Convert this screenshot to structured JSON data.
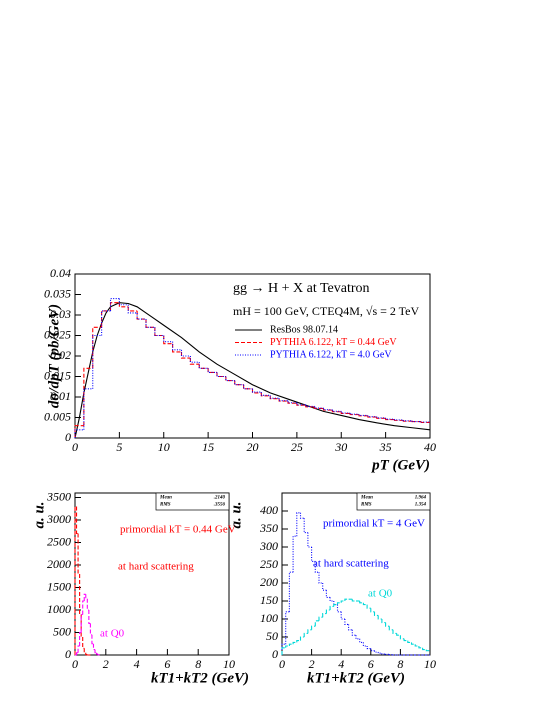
{
  "chart_data": [
    {
      "type": "line",
      "title": "gg → H + X at Tevatron",
      "subtitle": "mH = 100 GeV, CTEQ4M, √s = 2 TeV",
      "x_label": "pT (GeV)",
      "y_label": "dσ/dpT (pb/GeV)",
      "xlim": [
        0,
        40
      ],
      "xticks": [
        0,
        5,
        10,
        15,
        20,
        25,
        30,
        35,
        40
      ],
      "ylim": [
        0,
        0.04
      ],
      "yticks": [
        0,
        0.005,
        0.01,
        0.015,
        0.02,
        0.025,
        0.03,
        0.035,
        0.04
      ],
      "legend": "upper right",
      "series": [
        {
          "name": "ResBos 98.07.14",
          "color": "#000000",
          "dash": "solid",
          "x": [
            0,
            0.5,
            1,
            1.5,
            2,
            2.5,
            3,
            3.5,
            4,
            5,
            6,
            7,
            8,
            9,
            10,
            12,
            14,
            16,
            18,
            20,
            22,
            24,
            26,
            28,
            30,
            32,
            34,
            36,
            38,
            40
          ],
          "values": [
            0,
            0.005,
            0.011,
            0.016,
            0.021,
            0.025,
            0.028,
            0.0305,
            0.032,
            0.033,
            0.0328,
            0.032,
            0.0305,
            0.029,
            0.0275,
            0.0245,
            0.021,
            0.018,
            0.0155,
            0.013,
            0.011,
            0.0095,
            0.008,
            0.0065,
            0.0055,
            0.0045,
            0.0037,
            0.003,
            0.0025,
            0.002
          ]
        },
        {
          "name": "PYTHIA 6.122, kT = 0.44 GeV",
          "color": "#ff0000",
          "dash": "dashed",
          "bins": [
            0,
            1,
            2,
            3,
            4,
            5,
            6,
            7,
            8,
            9,
            10,
            11,
            12,
            13,
            14,
            15,
            16,
            17,
            18,
            19,
            20,
            21,
            22,
            23,
            24,
            25,
            26,
            27,
            28,
            29,
            30,
            31,
            32,
            33,
            34,
            35,
            36,
            37,
            38,
            39,
            40
          ],
          "values": [
            0.003,
            0.017,
            0.027,
            0.031,
            0.033,
            0.032,
            0.031,
            0.029,
            0.027,
            0.025,
            0.023,
            0.021,
            0.0195,
            0.018,
            0.017,
            0.016,
            0.015,
            0.014,
            0.013,
            0.012,
            0.011,
            0.0103,
            0.0096,
            0.009,
            0.0085,
            0.008,
            0.0076,
            0.0072,
            0.0068,
            0.0064,
            0.006,
            0.0057,
            0.0054,
            0.0051,
            0.0048,
            0.0045,
            0.0043,
            0.0041,
            0.004,
            0.0038
          ]
        },
        {
          "name": "PYTHIA 6.122, kT = 4.0 GeV",
          "color": "#0000ff",
          "dash": "dotted",
          "bins": [
            0,
            1,
            2,
            3,
            4,
            5,
            6,
            7,
            8,
            9,
            10,
            11,
            12,
            13,
            14,
            15,
            16,
            17,
            18,
            19,
            20,
            21,
            22,
            23,
            24,
            25,
            26,
            27,
            28,
            29,
            30,
            31,
            32,
            33,
            34,
            35,
            36,
            37,
            38,
            39,
            40
          ],
          "values": [
            0.002,
            0.012,
            0.025,
            0.031,
            0.034,
            0.0325,
            0.0305,
            0.029,
            0.027,
            0.025,
            0.0235,
            0.0215,
            0.02,
            0.0185,
            0.017,
            0.016,
            0.015,
            0.014,
            0.013,
            0.012,
            0.0112,
            0.0104,
            0.0097,
            0.0091,
            0.0086,
            0.0081,
            0.0077,
            0.0073,
            0.0069,
            0.0065,
            0.0061,
            0.0058,
            0.0055,
            0.0052,
            0.0049,
            0.0046,
            0.0044,
            0.0042,
            0.004,
            0.0039
          ]
        }
      ]
    },
    {
      "type": "histogram",
      "x_label": "kT1+kT2 (GeV)",
      "y_label": "a. u.",
      "xlim": [
        0,
        10
      ],
      "xticks": [
        0,
        2,
        4,
        6,
        8,
        10
      ],
      "ylim": [
        0,
        3600
      ],
      "yticks": [
        0,
        500,
        1000,
        1500,
        2000,
        2500,
        3000,
        3500
      ],
      "stats": [
        [
          "Mean",
          ".2140"
        ],
        [
          "RMS",
          ".3556"
        ]
      ],
      "annotations": [
        {
          "text": "primordial kT = 0.44 GeV",
          "color": "#ff0000"
        },
        {
          "text": "at hard scattering",
          "color": "#ff0000"
        },
        {
          "text": "at Q0",
          "color": "#ff00ff"
        }
      ],
      "series": [
        {
          "color": "#ff0000",
          "dash": "dashed",
          "bins": [
            0,
            0.1,
            0.2,
            0.3,
            0.4,
            0.5,
            0.6,
            0.7,
            0.8,
            0.9,
            1.0
          ],
          "values": [
            3300,
            2700,
            1800,
            900,
            400,
            150,
            50,
            10,
            0,
            0
          ]
        },
        {
          "color": "#ff00ff",
          "dash": "dashed",
          "bins": [
            0,
            0.1,
            0.2,
            0.3,
            0.4,
            0.5,
            0.6,
            0.7,
            0.8,
            0.9,
            1.0,
            1.1,
            1.2,
            1.3,
            1.4,
            1.5,
            1.6
          ],
          "values": [
            0,
            50,
            200,
            500,
            900,
            1200,
            1350,
            1250,
            1000,
            700,
            450,
            250,
            120,
            50,
            20,
            5
          ]
        }
      ]
    },
    {
      "type": "histogram",
      "x_label": "kT1+kT2 (GeV)",
      "y_label": "a. u.",
      "xlim": [
        0,
        10
      ],
      "xticks": [
        0,
        2,
        4,
        6,
        8,
        10
      ],
      "ylim": [
        0,
        450
      ],
      "yticks": [
        0,
        50,
        100,
        150,
        200,
        250,
        300,
        350,
        400
      ],
      "stats": [
        [
          "Mean",
          "1.964"
        ],
        [
          "RMS",
          "1.354"
        ]
      ],
      "annotations": [
        {
          "text": "primordial kT = 4 GeV",
          "color": "#0000ff"
        },
        {
          "text": "at hard scattering",
          "color": "#0000ff"
        },
        {
          "text": "at Q0",
          "color": "#00d8d8"
        }
      ],
      "series": [
        {
          "color": "#0000ff",
          "dash": "dotted",
          "bins": [
            0,
            0.25,
            0.5,
            0.75,
            1,
            1.25,
            1.5,
            1.75,
            2,
            2.25,
            2.5,
            2.75,
            3,
            3.25,
            3.5,
            3.75,
            4,
            4.25,
            4.5,
            4.75,
            5,
            5.25,
            5.5,
            5.75,
            6,
            6.25,
            6.5,
            6.75,
            7,
            7.25,
            7.5,
            7.75,
            8,
            8.25,
            8.5,
            8.75,
            9,
            9.25,
            9.5,
            9.75,
            10
          ],
          "values": [
            30,
            120,
            230,
            330,
            395,
            380,
            340,
            300,
            260,
            230,
            200,
            180,
            160,
            150,
            140,
            120,
            100,
            85,
            70,
            55,
            45,
            35,
            25,
            18,
            12,
            8,
            5,
            3,
            2,
            1,
            0,
            0,
            0,
            0,
            0,
            0,
            0,
            0,
            0,
            0
          ]
        },
        {
          "color": "#00d8d8",
          "dash": "dashed",
          "bins": [
            0,
            0.25,
            0.5,
            0.75,
            1,
            1.25,
            1.5,
            1.75,
            2,
            2.25,
            2.5,
            2.75,
            3,
            3.25,
            3.5,
            3.75,
            4,
            4.25,
            4.5,
            4.75,
            5,
            5.25,
            5.5,
            5.75,
            6,
            6.25,
            6.5,
            6.75,
            7,
            7.25,
            7.5,
            7.75,
            8,
            8.25,
            8.5,
            8.75,
            9,
            9.25,
            9.5,
            9.75,
            10
          ],
          "values": [
            20,
            25,
            30,
            35,
            40,
            50,
            60,
            70,
            80,
            95,
            105,
            115,
            125,
            135,
            140,
            145,
            150,
            155,
            155,
            150,
            150,
            145,
            140,
            130,
            120,
            110,
            100,
            90,
            80,
            70,
            60,
            55,
            45,
            40,
            35,
            30,
            25,
            20,
            15,
            12
          ]
        }
      ]
    }
  ]
}
